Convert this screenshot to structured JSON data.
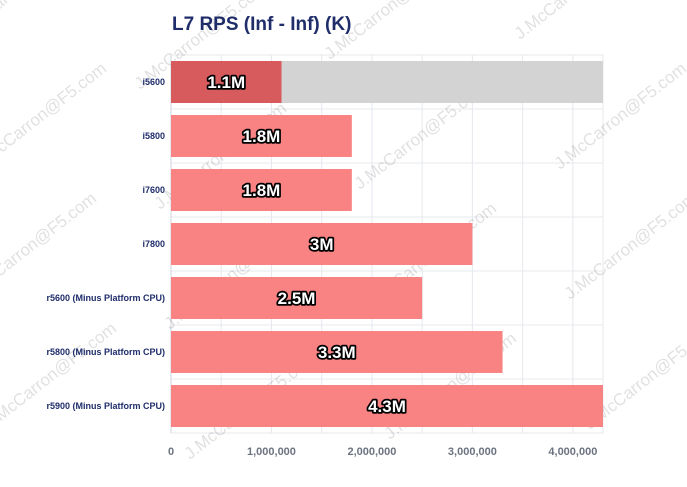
{
  "watermark": "J.McCarron@F5.com",
  "colors": {
    "bar": "#f98282",
    "highlight_bar": "#d75a5d",
    "remainder_bar": "#d3d3d3",
    "grid": "#e6e8ee",
    "title": "#1f2d6b"
  },
  "chart_data": {
    "type": "bar",
    "orientation": "horizontal",
    "title": "L7 RPS (Inf - Inf) (K)",
    "xlabel": "",
    "ylabel": "",
    "xlim": [
      0,
      4300000
    ],
    "x_ticks": [
      0,
      1000000,
      2000000,
      3000000,
      4000000
    ],
    "x_tick_labels": [
      "0",
      "1,000,000",
      "2,000,000",
      "3,000,000",
      "4,000,000"
    ],
    "grid": true,
    "legend": "none",
    "categories": [
      "i5600",
      "i5800",
      "i7600",
      "i7800",
      "r5600 (Minus Platform CPU)",
      "r5800 (Minus Platform CPU)",
      "r5900 (Minus Platform CPU)"
    ],
    "values": [
      1100000,
      1800000,
      1800000,
      3000000,
      2500000,
      3300000,
      4300000
    ],
    "data_labels": [
      "1.1M",
      "1.8M",
      "1.8M",
      "3M",
      "2.5M",
      "3.3M",
      "4.3M"
    ],
    "highlighted_index": 0,
    "highlight_remainder_to": 4300000
  }
}
